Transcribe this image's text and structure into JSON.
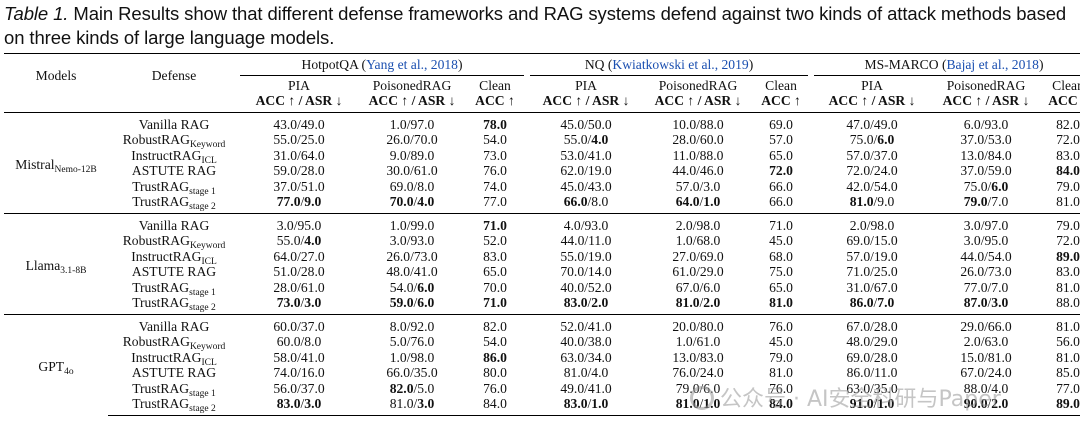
{
  "caption": {
    "label": "Table 1.",
    "text": "Main Results show that different defense frameworks and RAG systems defend against two kinds of attack methods based on three kinds of large language models."
  },
  "table": {
    "col_models": "Models",
    "col_defense": "Defense",
    "datasets": [
      {
        "name": "HotpotQA",
        "cite": "Yang et al., 2018"
      },
      {
        "name": "NQ",
        "cite": "Kwiatkowski et al., 2019"
      },
      {
        "name": "MS-MARCO",
        "cite": "Bajaj et al., 2018"
      }
    ],
    "sub_headers": [
      "PIA",
      "PoisonedRAG",
      "Clean"
    ],
    "metric_headers": [
      "ACC ↑ / ASR ↓",
      "ACC ↑ / ASR ↓",
      "ACC ↑"
    ],
    "groups": [
      {
        "model": "Mistral",
        "model_sub": "Nemo-12B",
        "rows": [
          {
            "d": "Vanilla RAG",
            "ds": "",
            "v": [
              "43.0/49.0",
              "1.0/97.0",
              "78.0",
              "45.0/50.0",
              "10.0/88.0",
              "69.0",
              "47.0/49.0",
              "6.0/93.0",
              "82.0"
            ]
          },
          {
            "d": "RobustRAG",
            "ds": "Keyword",
            "v": [
              "55.0/25.0",
              "26.0/70.0",
              "54.0",
              "55.0/4.0",
              "28.0/60.0",
              "57.0",
              "75.0/6.0",
              "37.0/53.0",
              "72.0"
            ]
          },
          {
            "d": "InstructRAG",
            "ds": "ICL",
            "v": [
              "31.0/64.0",
              "9.0/89.0",
              "73.0",
              "53.0/41.0",
              "11.0/88.0",
              "65.0",
              "57.0/37.0",
              "13.0/84.0",
              "83.0"
            ]
          },
          {
            "d": "ASTUTE RAG",
            "ds": "",
            "v": [
              "59.0/28.0",
              "30.0/61.0",
              "76.0",
              "62.0/19.0",
              "44.0/46.0",
              "72.0",
              "72.0/24.0",
              "37.0/59.0",
              "84.0"
            ]
          },
          {
            "d": "TrustRAG",
            "ds": "stage 1",
            "v": [
              "37.0/51.0",
              "69.0/8.0",
              "74.0",
              "45.0/43.0",
              "57.0/3.0",
              "66.0",
              "42.0/54.0",
              "75.0/6.0",
              "79.0"
            ]
          },
          {
            "d": "TrustRAG",
            "ds": "stage 2",
            "v": [
              "77.0/9.0",
              "70.0/4.0",
              "77.0",
              "66.0/8.0",
              "64.0/1.0",
              "66.0",
              "81.0/9.0",
              "79.0/7.0",
              "81.0"
            ]
          }
        ]
      },
      {
        "model": "Llama",
        "model_sub": "3.1-8B",
        "rows": [
          {
            "d": "Vanilla RAG",
            "ds": "",
            "v": [
              "3.0/95.0",
              "1.0/99.0",
              "71.0",
              "4.0/93.0",
              "2.0/98.0",
              "71.0",
              "2.0/98.0",
              "3.0/97.0",
              "79.0"
            ]
          },
          {
            "d": "RobustRAG",
            "ds": "Keyword",
            "v": [
              "55.0/4.0",
              "3.0/93.0",
              "52.0",
              "44.0/11.0",
              "1.0/68.0",
              "45.0",
              "69.0/15.0",
              "3.0/95.0",
              "72.0"
            ]
          },
          {
            "d": "InstructRAG",
            "ds": "ICL",
            "v": [
              "64.0/27.0",
              "26.0/73.0",
              "83.0",
              "55.0/19.0",
              "27.0/69.0",
              "68.0",
              "57.0/19.0",
              "44.0/54.0",
              "89.0"
            ]
          },
          {
            "d": "ASTUTE RAG",
            "ds": "",
            "v": [
              "51.0/28.0",
              "48.0/41.0",
              "65.0",
              "70.0/14.0",
              "61.0/29.0",
              "75.0",
              "71.0/25.0",
              "26.0/73.0",
              "83.0"
            ]
          },
          {
            "d": "TrustRAG",
            "ds": "stage 1",
            "v": [
              "28.0/61.0",
              "54.0/6.0",
              "70.0",
              "40.0/52.0",
              "67.0/6.0",
              "65.0",
              "31.0/67.0",
              "77.0/7.0",
              "81.0"
            ]
          },
          {
            "d": "TrustRAG",
            "ds": "stage 2",
            "v": [
              "73.0/3.0",
              "59.0/6.0",
              "71.0",
              "83.0/2.0",
              "81.0/2.0",
              "81.0",
              "86.0/7.0",
              "87.0/3.0",
              "88.0"
            ]
          }
        ]
      },
      {
        "model": "GPT",
        "model_sub": "4o",
        "rows": [
          {
            "d": "Vanilla RAG",
            "ds": "",
            "v": [
              "60.0/37.0",
              "8.0/92.0",
              "82.0",
              "52.0/41.0",
              "20.0/80.0",
              "76.0",
              "67.0/28.0",
              "29.0/66.0",
              "81.0"
            ]
          },
          {
            "d": "RobustRAG",
            "ds": "Keyword",
            "v": [
              "60.0/8.0",
              "5.0/76.0",
              "54.0",
              "40.0/38.0",
              "1.0/61.0",
              "45.0",
              "48.0/29.0",
              "2.0/63.0",
              "56.0"
            ]
          },
          {
            "d": "InstructRAG",
            "ds": "ICL",
            "v": [
              "58.0/41.0",
              "1.0/98.0",
              "86.0",
              "63.0/34.0",
              "13.0/83.0",
              "79.0",
              "69.0/28.0",
              "15.0/81.0",
              "81.0"
            ]
          },
          {
            "d": "ASTUTE RAG",
            "ds": "",
            "v": [
              "74.0/16.0",
              "66.0/35.0",
              "80.0",
              "81.0/4.0",
              "76.0/24.0",
              "81.0",
              "86.0/11.0",
              "67.0/24.0",
              "85.0"
            ]
          },
          {
            "d": "TrustRAG",
            "ds": "stage 1",
            "v": [
              "56.0/37.0",
              "82.0/5.0",
              "76.0",
              "49.0/41.0",
              "79.0/6.0",
              "76.0",
              "63.0/35.0",
              "88.0/4.0",
              "77.0"
            ]
          },
          {
            "d": "TrustRAG",
            "ds": "stage 2",
            "v": [
              "83.0/3.0",
              "81.0/3.0",
              "84.0",
              "83.0/1.0",
              "81.0/1.0",
              "84.0",
              "91.0/1.0",
              "90.0/2.0",
              "89.0"
            ]
          }
        ]
      }
    ]
  },
  "watermark": "公众号 · AI安全科研与Paper"
}
